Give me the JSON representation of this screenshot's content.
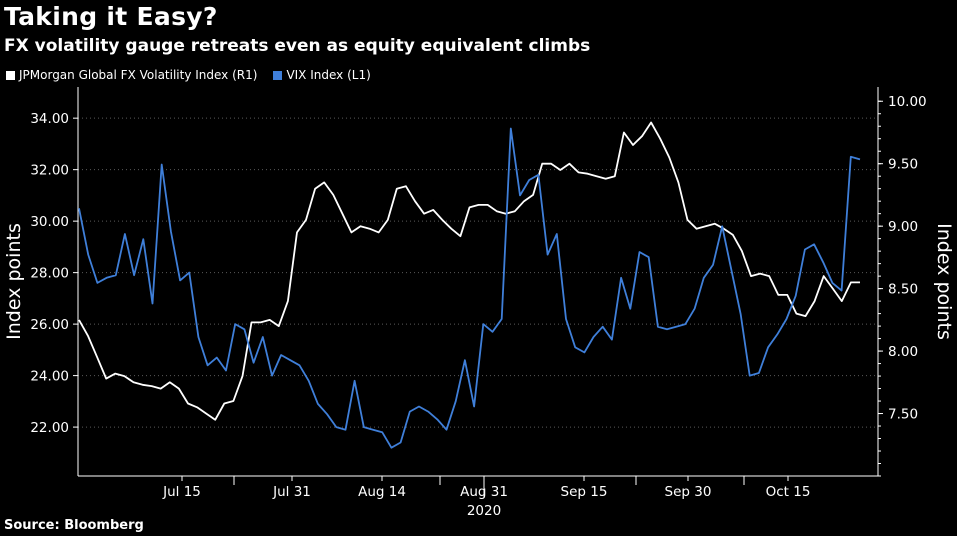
{
  "header": {
    "title": "Taking it Easy?",
    "subtitle": "FX volatility gauge retreats even as equity equivalent climbs"
  },
  "legend": {
    "items": [
      {
        "label": "JPMorgan Global FX Volatility Index (R1)",
        "color": "#ffffff"
      },
      {
        "label": "VIX Index (L1)",
        "color": "#3f7fd9"
      }
    ]
  },
  "footer": {
    "source": "Source: Bloomberg"
  },
  "chart_data": {
    "type": "line",
    "x_tick_labels": [
      "Jul 15",
      "Jul 31",
      "Aug 14",
      "Aug 31",
      "Sep 15",
      "Sep 30",
      "Oct 15"
    ],
    "x_year_label": "2020",
    "y_left": {
      "label": "Index points",
      "ticks": [
        "22.00",
        "24.00",
        "26.00",
        "28.00",
        "30.00",
        "32.00",
        "34.00"
      ],
      "ylim": [
        20.1,
        34.9
      ]
    },
    "y_right": {
      "label": "Index points",
      "ticks": [
        "7.50",
        "8.00",
        "8.50",
        "9.00",
        "9.50",
        "10.00"
      ],
      "ylim": [
        7.0,
        10.05
      ]
    },
    "series": [
      {
        "name": "JPMorgan Global FX Volatility Index (R1)",
        "axis": "right",
        "color": "#ffffff",
        "values": [
          8.25,
          8.12,
          7.95,
          7.78,
          7.82,
          7.8,
          7.75,
          7.73,
          7.72,
          7.7,
          7.75,
          7.7,
          7.58,
          7.55,
          7.5,
          7.45,
          7.58,
          7.6,
          7.8,
          8.23,
          8.23,
          8.25,
          8.2,
          8.4,
          8.95,
          9.05,
          9.3,
          9.35,
          9.25,
          9.1,
          8.95,
          9.0,
          8.98,
          8.95,
          9.05,
          9.3,
          9.32,
          9.2,
          9.1,
          9.13,
          9.05,
          8.98,
          8.92,
          9.15,
          9.17,
          9.17,
          9.12,
          9.1,
          9.12,
          9.2,
          9.25,
          9.5,
          9.5,
          9.45,
          9.5,
          9.43,
          9.42,
          9.4,
          9.38,
          9.4,
          9.75,
          9.65,
          9.72,
          9.83,
          9.7,
          9.55,
          9.35,
          9.05,
          8.98,
          9.0,
          9.02,
          8.98,
          8.93,
          8.8,
          8.6,
          8.62,
          8.6,
          8.45,
          8.45,
          8.3,
          8.28,
          8.4,
          8.6,
          8.5,
          8.4,
          8.55,
          8.55
        ]
      },
      {
        "name": "VIX Index (L1)",
        "axis": "left",
        "color": "#3f7fd9",
        "values": [
          30.5,
          28.7,
          27.6,
          27.8,
          27.9,
          29.5,
          27.9,
          29.3,
          26.8,
          32.2,
          29.6,
          27.7,
          28.0,
          25.5,
          24.4,
          24.7,
          24.2,
          26.0,
          25.8,
          24.5,
          25.5,
          24.0,
          24.8,
          24.6,
          24.4,
          23.8,
          22.9,
          22.5,
          22.0,
          21.9,
          23.8,
          22.0,
          21.9,
          21.8,
          21.2,
          21.4,
          22.6,
          22.8,
          22.6,
          22.3,
          21.9,
          23.0,
          24.6,
          22.8,
          26.0,
          25.7,
          26.2,
          33.6,
          31.0,
          31.6,
          31.8,
          28.7,
          29.5,
          26.2,
          25.1,
          24.9,
          25.5,
          25.9,
          25.4,
          27.8,
          26.6,
          28.8,
          28.6,
          25.9,
          25.8,
          25.9,
          26.0,
          26.6,
          27.8,
          28.3,
          29.8,
          28.1,
          26.4,
          24.0,
          24.1,
          25.1,
          25.6,
          26.2,
          27.1,
          28.9,
          29.1,
          28.4,
          27.6,
          27.3,
          32.5,
          32.4
        ]
      }
    ],
    "grid": "horizontal dotted"
  }
}
